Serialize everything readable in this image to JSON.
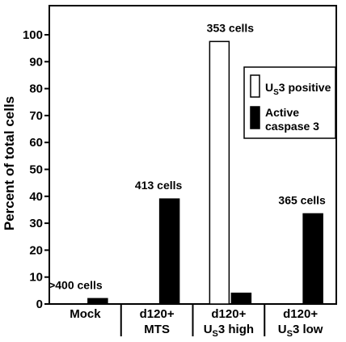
{
  "chart_data": {
    "type": "bar",
    "ylabel": "Percent of total cells",
    "ylim": [
      0,
      108
    ],
    "yticks": [
      "0",
      "10",
      "20",
      "30",
      "40",
      "50",
      "60",
      "70",
      "80",
      "90",
      "100"
    ],
    "categories": [
      {
        "line1": "Mock",
        "line2": "",
        "line2_sub": "",
        "line2_rest": ""
      },
      {
        "line1": "d120+",
        "line2": "MTS",
        "line2_sub": "",
        "line2_rest": ""
      },
      {
        "line1": "d120+",
        "line2": "U",
        "line2_sub": "S",
        "line2_rest": "3 high"
      },
      {
        "line1": "d120+",
        "line2": "U",
        "line2_sub": "S",
        "line2_rest": "3 low"
      }
    ],
    "series": [
      {
        "legend_main": "U",
        "legend_sub": "S",
        "legend_rest": "3 positive",
        "color": "#ffffff",
        "values": [
          0,
          0,
          97.5,
          0
        ]
      },
      {
        "legend_main": "Active",
        "legend_line2": "caspase 3",
        "color": "#000000",
        "values": [
          2,
          39,
          4,
          33.5
        ]
      }
    ],
    "annotations": [
      ">400 cells",
      "413 cells",
      "353 cells",
      "365 cells"
    ],
    "legend_position": "right",
    "grid": false
  }
}
